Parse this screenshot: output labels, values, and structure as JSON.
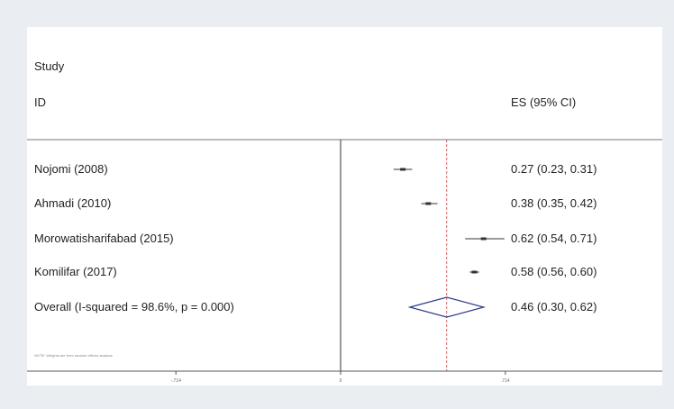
{
  "header": {
    "study_label": "Study",
    "id_label": "ID",
    "es_label": "ES (95% CI)"
  },
  "footnote": "NOTE: Weights are from random effects analysis",
  "chart_data": {
    "type": "forest",
    "null_line": 0,
    "overall_line": 0.46,
    "xlim": [
      -1.1,
      1.1
    ],
    "xticks": [
      -0.714,
      0,
      0.714
    ],
    "xtick_labels": [
      "-.714",
      "0",
      ".714"
    ],
    "studies": [
      {
        "label": "Nojomi (2008)",
        "es": 0.27,
        "lo": 0.23,
        "hi": 0.31,
        "ci_text": "0.27 (0.23, 0.31)"
      },
      {
        "label": "Ahmadi (2010)",
        "es": 0.38,
        "lo": 0.35,
        "hi": 0.42,
        "ci_text": "0.38 (0.35, 0.42)"
      },
      {
        "label": "Morowatisharifabad (2015)",
        "es": 0.62,
        "lo": 0.54,
        "hi": 0.71,
        "ci_text": "0.62 (0.54, 0.71)"
      },
      {
        "label": "Komilifar (2017)",
        "es": 0.58,
        "lo": 0.56,
        "hi": 0.6,
        "ci_text": "0.58 (0.56, 0.60)"
      }
    ],
    "overall": {
      "label": "Overall  (I-squared = 98.6%, p = 0.000)",
      "es": 0.46,
      "lo": 0.3,
      "hi": 0.62,
      "ci_text": "0.46 (0.30, 0.62)"
    },
    "colors": {
      "diamond": "#2e3a8c",
      "marker": "#333333",
      "axis": "#555555",
      "null_line": "#333333",
      "overall_line": "#d04040"
    }
  }
}
